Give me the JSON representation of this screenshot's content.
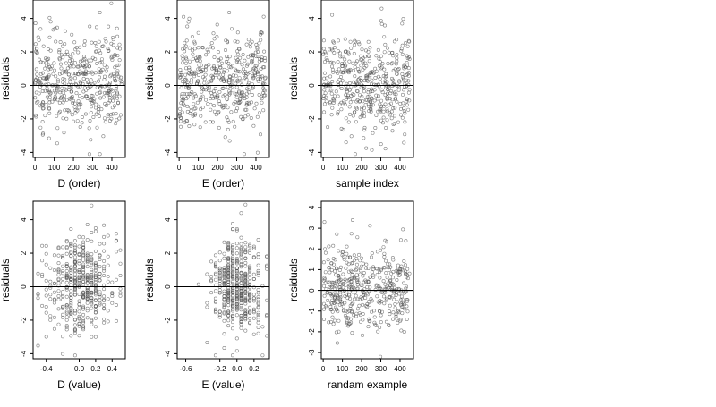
{
  "chart_data": [
    {
      "type": "scatter",
      "xlabel": "D (order)",
      "ylabel": "residuals",
      "xlim": [
        -10,
        470
      ],
      "ylim": [
        -4.3,
        5.1
      ],
      "x_ticks": [
        0,
        100,
        200,
        300,
        400
      ],
      "x_tick_labels": [
        "0",
        "100",
        "200",
        "300",
        "400"
      ],
      "y_ticks": [
        -4,
        -2,
        0,
        2,
        4
      ],
      "y_tick_labels": [
        "-4",
        "-2",
        "0",
        "2",
        "4"
      ],
      "hline": 0,
      "x_range": [
        0,
        450
      ],
      "y_center": 0.15,
      "y_sd": 1.45,
      "y_min": -4.1,
      "y_max": 4.9,
      "n_points": 450,
      "dist": "index",
      "seed": 11
    },
    {
      "type": "scatter",
      "xlabel": "E (order)",
      "ylabel": "residuals",
      "xlim": [
        -10,
        470
      ],
      "ylim": [
        -4.3,
        5.1
      ],
      "x_ticks": [
        0,
        100,
        200,
        300,
        400
      ],
      "x_tick_labels": [
        "0",
        "100",
        "200",
        "300",
        "400"
      ],
      "y_ticks": [
        -4,
        -2,
        0,
        2,
        4
      ],
      "y_tick_labels": [
        "-4",
        "-2",
        "0",
        "2",
        "4"
      ],
      "hline": 0,
      "x_range": [
        0,
        450
      ],
      "y_center": 0.15,
      "y_sd": 1.45,
      "y_min": -4.1,
      "y_max": 4.9,
      "n_points": 450,
      "dist": "index",
      "seed": 23
    },
    {
      "type": "scatter",
      "xlabel": "sample index",
      "ylabel": "residuals",
      "xlim": [
        -10,
        470
      ],
      "ylim": [
        -4.3,
        5.1
      ],
      "x_ticks": [
        0,
        100,
        200,
        300,
        400
      ],
      "x_tick_labels": [
        "0",
        "100",
        "200",
        "300",
        "400"
      ],
      "y_ticks": [
        -4,
        -2,
        0,
        2,
        4
      ],
      "y_tick_labels": [
        "-4",
        "-2",
        "0",
        "2",
        "4"
      ],
      "hline": 0,
      "x_range": [
        0,
        450
      ],
      "y_center": 0.15,
      "y_sd": 1.45,
      "y_min": -4.1,
      "y_max": 4.9,
      "n_points": 450,
      "dist": "index",
      "seed": 37
    },
    {
      "type": "scatter",
      "xlabel": "D (value)",
      "ylabel": "residuals",
      "xlim": [
        -0.56,
        0.56
      ],
      "ylim": [
        -4.3,
        5.1
      ],
      "x_ticks": [
        -0.4,
        0.0,
        0.2,
        0.4
      ],
      "x_tick_labels": [
        "-0.4",
        "0.0",
        "0.2",
        "0.4"
      ],
      "y_ticks": [
        -4,
        -2,
        0,
        2,
        4
      ],
      "y_tick_labels": [
        "-4",
        "-2",
        "0",
        "2",
        "4"
      ],
      "hline": 0,
      "x_range": [
        -0.5,
        0.5
      ],
      "x_center": 0.0,
      "x_sd": 0.2,
      "y_center": 0.15,
      "y_sd": 1.45,
      "y_min": -4.1,
      "y_max": 4.9,
      "n_points": 450,
      "dist": "value",
      "seed": 53
    },
    {
      "type": "scatter",
      "xlabel": "E (value)",
      "ylabel": "residuals",
      "xlim": [
        -0.7,
        0.38
      ],
      "ylim": [
        -4.3,
        5.1
      ],
      "x_ticks": [
        -0.6,
        -0.2,
        0.0,
        0.2
      ],
      "x_tick_labels": [
        "-0.6",
        "-0.2",
        "0.0",
        "0.2"
      ],
      "y_ticks": [
        -4,
        -2,
        0,
        2,
        4
      ],
      "y_tick_labels": [
        "-4",
        "-2",
        "0",
        "2",
        "4"
      ],
      "hline": 0,
      "x_range": [
        -0.65,
        0.35
      ],
      "x_center": 0.0,
      "x_sd": 0.15,
      "y_center": 0.15,
      "y_sd": 1.45,
      "y_min": -4.1,
      "y_max": 4.9,
      "n_points": 450,
      "dist": "value",
      "seed": 71
    },
    {
      "type": "scatter",
      "xlabel": "randam example",
      "ylabel": "residuals",
      "xlim": [
        -10,
        470
      ],
      "ylim": [
        -3.3,
        4.3
      ],
      "x_ticks": [
        0,
        100,
        200,
        300,
        400
      ],
      "x_tick_labels": [
        "0",
        "100",
        "200",
        "300",
        "400"
      ],
      "y_ticks": [
        -3,
        -2,
        -1,
        0,
        1,
        2,
        3,
        4
      ],
      "y_tick_labels": [
        "-3",
        "-2",
        "-1",
        "0",
        "1",
        "2",
        "3",
        "4"
      ],
      "hline": 0,
      "x_range": [
        0,
        450
      ],
      "y_center": 0.0,
      "y_sd": 1.0,
      "y_min": -3.2,
      "y_max": 3.9,
      "n_points": 450,
      "dist": "index",
      "seed": 97
    }
  ],
  "style": {
    "point_color": "#555555",
    "axis_color": "#000000",
    "hline_color": "#000000"
  }
}
